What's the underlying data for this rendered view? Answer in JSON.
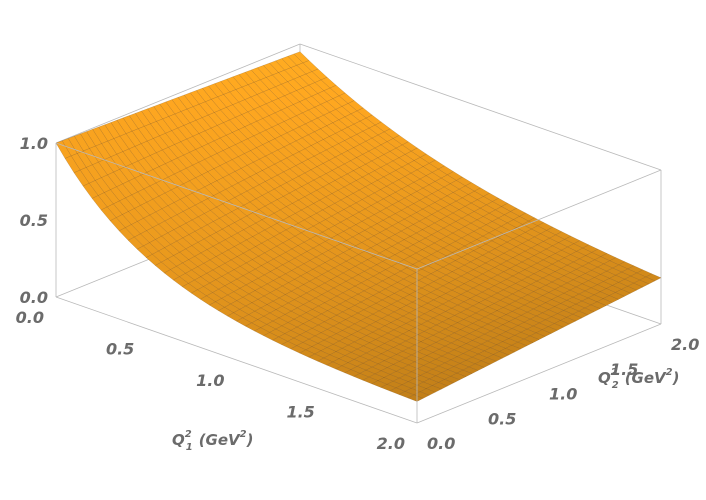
{
  "chart_data": {
    "type": "surface3d",
    "title": "",
    "x_axis": {
      "variable": "Q",
      "subscript": "1",
      "superscript": "2",
      "unit_prefix": "(GeV",
      "unit_superscript": "2",
      "unit_suffix": ")",
      "range": [
        0.0,
        2.0
      ],
      "ticks": [
        "0.0",
        "0.5",
        "1.0",
        "1.5",
        "2.0"
      ]
    },
    "y_axis": {
      "variable": "Q",
      "subscript": "2",
      "superscript": "2",
      "unit_prefix": "(GeV",
      "unit_superscript": "2",
      "unit_suffix": ")",
      "range": [
        0.0,
        2.0
      ],
      "ticks": [
        "0.0",
        "0.5",
        "1.0",
        "1.5",
        "2.0"
      ]
    },
    "z_axis": {
      "label": "",
      "range": [
        0.0,
        1.0
      ],
      "ticks": [
        "0.0",
        "0.5",
        "1.0"
      ]
    },
    "surface": {
      "z_at_corners": {
        "q1_0_q2_0": 1.0,
        "q1_2_q2_0": 0.14,
        "q1_0_q2_2": 0.95,
        "q1_2_q2_2": 0.3
      },
      "color": "#f7a21f",
      "mesh_color": "#7a4a10",
      "mesh_lines": 40
    }
  }
}
